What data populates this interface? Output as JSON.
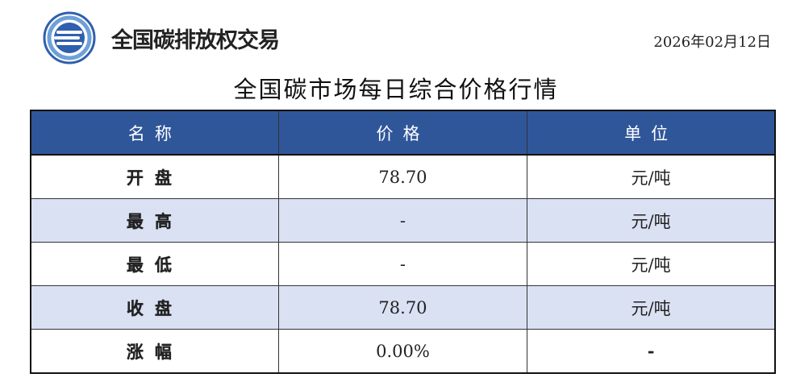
{
  "header": {
    "brand": "全国碳排放权交易",
    "date": "2026年02月12日",
    "logo_icon": "carbon-exchange-emblem",
    "logo_colors": {
      "ring": "#2f5fae",
      "accent": "#6fa0d8"
    }
  },
  "title": "全国碳市场每日综合价格行情",
  "table": {
    "header_color": "#30569a",
    "alt_row_color": "#dae1f3",
    "columns": [
      "名称",
      "价格",
      "单位"
    ],
    "rows": [
      {
        "name": "开盘",
        "price": "78.70",
        "unit": "元/吨"
      },
      {
        "name": "最高",
        "price": "-",
        "unit": "元/吨"
      },
      {
        "name": "最低",
        "price": "-",
        "unit": "元/吨"
      },
      {
        "name": "收盘",
        "price": "78.70",
        "unit": "元/吨"
      },
      {
        "name": "涨幅",
        "price": "0.00%",
        "unit": "-"
      }
    ]
  }
}
